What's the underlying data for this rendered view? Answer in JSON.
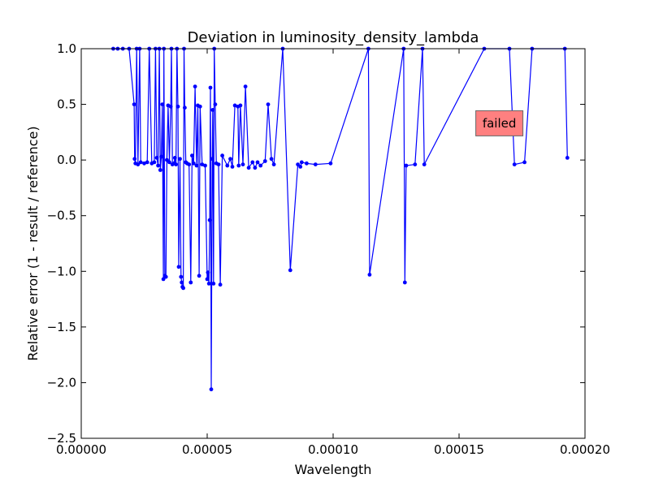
{
  "chart_data": {
    "type": "scatter",
    "title": "Deviation in luminosity_density_lambda",
    "xlabel": "Wavelength",
    "ylabel": "Relative error (1 - result / reference)",
    "xlim": [
      0.0,
      0.0002
    ],
    "ylim": [
      -2.5,
      1.0
    ],
    "x_ticks": [
      0.0,
      5e-05,
      0.0001,
      0.00015,
      0.0002
    ],
    "x_tick_labels": [
      "0.00000",
      "0.00005",
      "0.00010",
      "0.00015",
      "0.00020"
    ],
    "y_ticks": [
      -2.5,
      -2.0,
      -1.5,
      -1.0,
      -0.5,
      0.0,
      0.5,
      1.0
    ],
    "y_tick_labels": [
      "−2.5",
      "−2.0",
      "−1.5",
      "−1.0",
      "−0.5",
      "0.0",
      "0.5",
      "1.0"
    ],
    "grid": false,
    "series": [
      {
        "name": "",
        "color": "#0000ff",
        "marker": "dot",
        "connected": true,
        "points": [
          [
            1.27e-05,
            1.0
          ],
          [
            1.45e-05,
            1.0
          ],
          [
            1.65e-05,
            1.0
          ],
          [
            1.9e-05,
            1.0
          ],
          [
            2.1e-05,
            0.5
          ],
          [
            2.12e-05,
            0.01
          ],
          [
            2.15e-05,
            -0.03
          ],
          [
            2.2e-05,
            1.0
          ],
          [
            2.25e-05,
            -0.04
          ],
          [
            2.32e-05,
            1.0
          ],
          [
            2.36e-05,
            -0.02
          ],
          [
            2.5e-05,
            -0.03
          ],
          [
            2.62e-05,
            -0.02
          ],
          [
            2.7e-05,
            1.0
          ],
          [
            2.8e-05,
            -0.03
          ],
          [
            2.9e-05,
            -0.02
          ],
          [
            2.95e-05,
            1.0
          ],
          [
            3e-05,
            0.02
          ],
          [
            3.05e-05,
            -0.05
          ],
          [
            3.1e-05,
            1.0
          ],
          [
            3.14e-05,
            -0.09
          ],
          [
            3.18e-05,
            0.03
          ],
          [
            3.22e-05,
            0.5
          ],
          [
            3.26e-05,
            -1.07
          ],
          [
            3.28e-05,
            1.0
          ],
          [
            3.32e-05,
            -1.04
          ],
          [
            3.36e-05,
            -1.05
          ],
          [
            3.4e-05,
            0.0
          ],
          [
            3.45e-05,
            0.49
          ],
          [
            3.5e-05,
            -0.02
          ],
          [
            3.55e-05,
            0.48
          ],
          [
            3.58e-05,
            1.0
          ],
          [
            3.62e-05,
            -0.04
          ],
          [
            3.68e-05,
            -0.03
          ],
          [
            3.72e-05,
            0.02
          ],
          [
            3.76e-05,
            -0.04
          ],
          [
            3.8e-05,
            1.0
          ],
          [
            3.84e-05,
            0.48
          ],
          [
            3.87e-05,
            -0.96
          ],
          [
            3.92e-05,
            0.01
          ],
          [
            3.96e-05,
            -1.05
          ],
          [
            3.99e-05,
            -1.1
          ],
          [
            4.02e-05,
            -1.14
          ],
          [
            4.05e-05,
            -1.15
          ],
          [
            4.08e-05,
            1.0
          ],
          [
            4.11e-05,
            0.47
          ],
          [
            4.15e-05,
            -0.02
          ],
          [
            4.2e-05,
            -0.03
          ],
          [
            4.28e-05,
            -0.04
          ],
          [
            4.35e-05,
            -1.1
          ],
          [
            4.4e-05,
            0.04
          ],
          [
            4.46e-05,
            -0.03
          ],
          [
            4.52e-05,
            0.66
          ],
          [
            4.58e-05,
            -0.05
          ],
          [
            4.63e-05,
            0.49
          ],
          [
            4.68e-05,
            -1.04
          ],
          [
            4.72e-05,
            0.48
          ],
          [
            4.8e-05,
            -0.04
          ],
          [
            4.92e-05,
            -0.05
          ],
          [
            5e-05,
            -1.07
          ],
          [
            5.03e-05,
            -1.01
          ],
          [
            5.07e-05,
            -1.11
          ],
          [
            5.1e-05,
            -0.54
          ],
          [
            5.13e-05,
            0.65
          ],
          [
            5.16e-05,
            -2.06
          ],
          [
            5.2e-05,
            0.01
          ],
          [
            5.22e-05,
            0.45
          ],
          [
            5.25e-05,
            -1.11
          ],
          [
            5.28e-05,
            1.0
          ],
          [
            5.32e-05,
            0.5
          ],
          [
            5.36e-05,
            -0.03
          ],
          [
            5.45e-05,
            -0.04
          ],
          [
            5.52e-05,
            -1.12
          ],
          [
            5.6e-05,
            0.04
          ],
          [
            5.8e-05,
            -0.05
          ],
          [
            5.92e-05,
            0.01
          ],
          [
            6e-05,
            -0.06
          ],
          [
            6.1e-05,
            0.49
          ],
          [
            6.22e-05,
            0.48
          ],
          [
            6.25e-05,
            -0.05
          ],
          [
            6.32e-05,
            0.49
          ],
          [
            6.42e-05,
            -0.04
          ],
          [
            6.52e-05,
            0.66
          ],
          [
            6.65e-05,
            -0.07
          ],
          [
            6.8e-05,
            -0.02
          ],
          [
            6.9e-05,
            -0.07
          ],
          [
            7e-05,
            -0.02
          ],
          [
            7.12e-05,
            -0.05
          ],
          [
            7.3e-05,
            -0.01
          ],
          [
            7.42e-05,
            0.5
          ],
          [
            7.55e-05,
            0.01
          ],
          [
            7.65e-05,
            -0.04
          ],
          [
            8e-05,
            1.0
          ],
          [
            8.3e-05,
            -0.99
          ],
          [
            8.6e-05,
            -0.04
          ],
          [
            8.7e-05,
            -0.06
          ],
          [
            8.75e-05,
            -0.02
          ],
          [
            8.95e-05,
            -0.03
          ],
          [
            9.3e-05,
            -0.04
          ],
          [
            9.9e-05,
            -0.03
          ],
          [
            0.000114,
            1.0
          ],
          [
            0.0001145,
            -1.03
          ],
          [
            0.000128,
            1.0
          ],
          [
            0.0001285,
            -1.1
          ],
          [
            0.000129,
            -0.05
          ],
          [
            0.0001325,
            -0.04
          ],
          [
            0.0001355,
            1.0
          ],
          [
            0.0001362,
            -0.04
          ],
          [
            0.00016,
            1.0
          ],
          [
            0.00017,
            1.0
          ],
          [
            0.000172,
            -0.04
          ],
          [
            0.000176,
            -0.02
          ],
          [
            0.000179,
            1.0
          ],
          [
            0.000192,
            1.0
          ],
          [
            0.000193,
            0.02
          ]
        ]
      }
    ],
    "annotation": {
      "text": "failed",
      "x": 0.000166,
      "y": 0.33,
      "background": "#ff8080"
    }
  }
}
